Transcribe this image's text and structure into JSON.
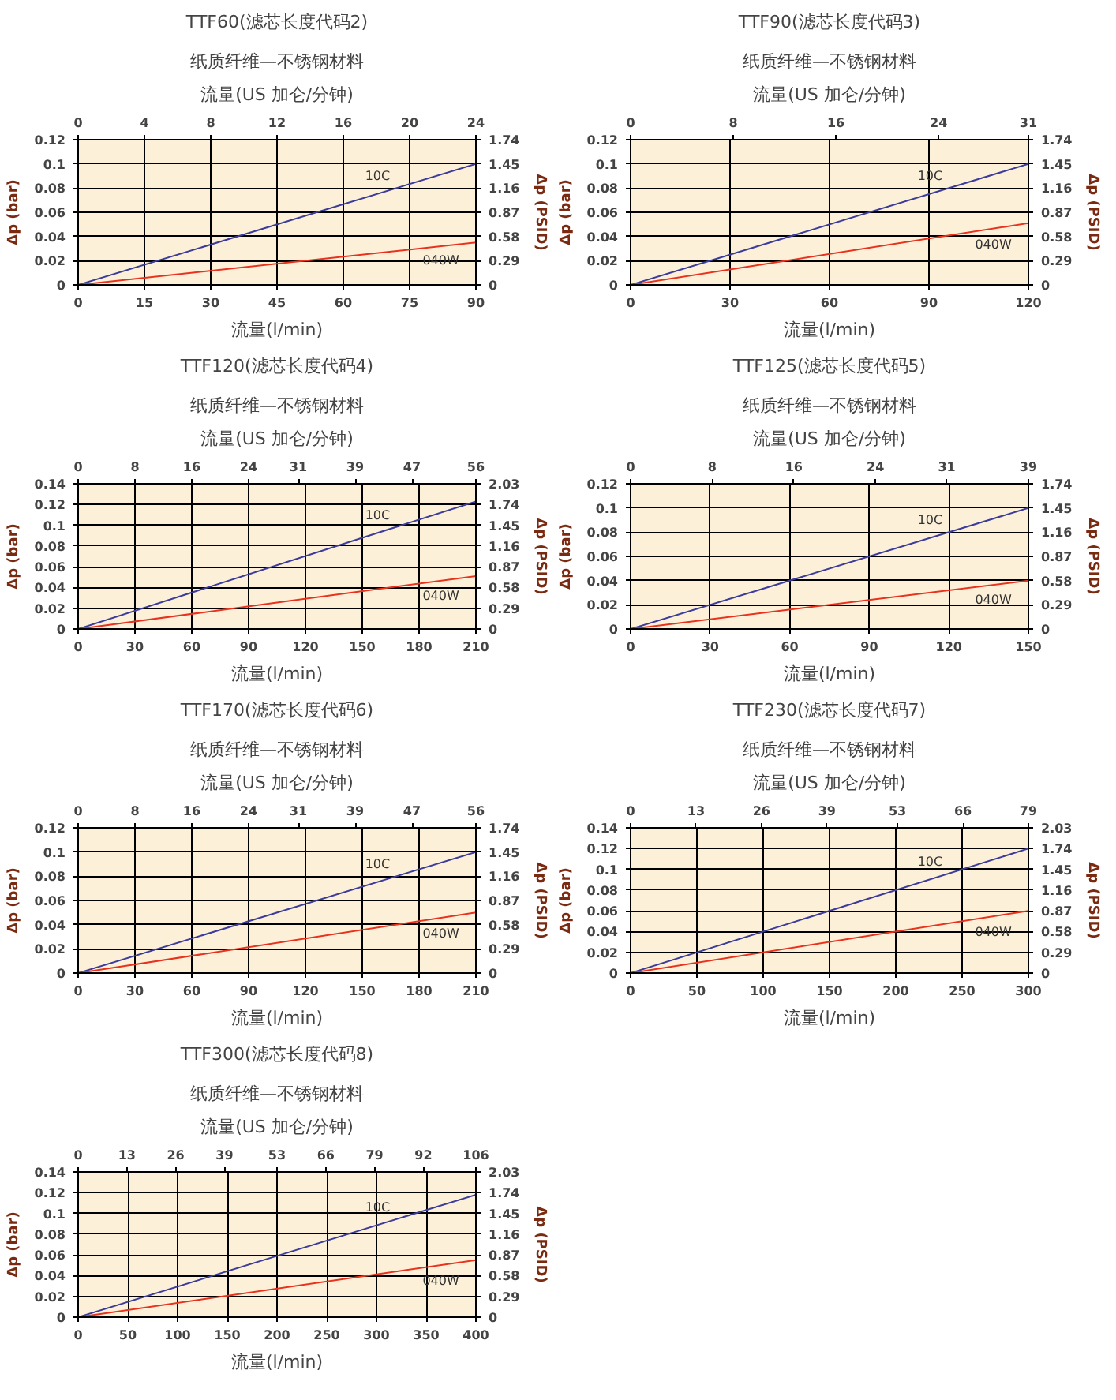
{
  "chart_data": [
    {
      "type": "line",
      "title": "TTF60(滤芯长度代码2)",
      "subtitle": "纸质纤维—不锈钢材料",
      "x2label": "流量(US 加仑/分钟)",
      "xlabel": "流量(l/min)",
      "ylabel": "Δp (bar)",
      "y2label": "Δp (PSID)",
      "xlim": [
        0,
        90
      ],
      "xticks": [
        0,
        15,
        30,
        45,
        60,
        75,
        90
      ],
      "x2lim": [
        0,
        24
      ],
      "x2ticks": [
        0,
        4,
        8,
        12,
        16,
        20,
        24
      ],
      "ylim": [
        0,
        0.12
      ],
      "yticks": [
        0,
        0.02,
        0.04,
        0.06,
        0.08,
        0.1,
        0.12
      ],
      "y2lim": [
        0,
        1.74
      ],
      "y2ticks": [
        0,
        0.29,
        0.58,
        0.87,
        1.16,
        1.45,
        1.74
      ],
      "grid": true,
      "series": [
        {
          "name": "10C",
          "color": "#3b3b9b",
          "x": [
            0,
            90
          ],
          "values": [
            0,
            0.1
          ]
        },
        {
          "name": "040W",
          "color": "#e8321e",
          "x": [
            0,
            90
          ],
          "values": [
            0,
            0.035
          ]
        }
      ]
    },
    {
      "type": "line",
      "title": "TTF90(滤芯长度代码3)",
      "subtitle": "纸质纤维—不锈钢材料",
      "x2label": "流量(US 加仑/分钟)",
      "xlabel": "流量(l/min)",
      "ylabel": "Δp (bar)",
      "y2label": "Δp (PSID)",
      "xlim": [
        0,
        120
      ],
      "xticks": [
        0,
        30,
        60,
        90,
        120
      ],
      "x2lim": [
        0,
        31
      ],
      "x2ticks": [
        0,
        8,
        16,
        24,
        31
      ],
      "ylim": [
        0,
        0.12
      ],
      "yticks": [
        0,
        0.02,
        0.04,
        0.06,
        0.08,
        0.1,
        0.12
      ],
      "y2lim": [
        0,
        1.74
      ],
      "y2ticks": [
        0,
        0.29,
        0.58,
        0.87,
        1.16,
        1.45,
        1.74
      ],
      "grid": true,
      "series": [
        {
          "name": "10C",
          "color": "#3b3b9b",
          "x": [
            0,
            120
          ],
          "values": [
            0,
            0.1
          ]
        },
        {
          "name": "040W",
          "color": "#e8321e",
          "x": [
            0,
            120
          ],
          "values": [
            0,
            0.051
          ]
        }
      ]
    },
    {
      "type": "line",
      "title": "TTF120(滤芯长度代码4)",
      "subtitle": "纸质纤维—不锈钢材料",
      "x2label": "流量(US 加仑/分钟)",
      "xlabel": "流量(l/min)",
      "ylabel": "Δp (bar)",
      "y2label": "Δp (PSID)",
      "xlim": [
        0,
        210
      ],
      "xticks": [
        0,
        30,
        60,
        90,
        120,
        150,
        180,
        210
      ],
      "x2lim": [
        0,
        56
      ],
      "x2ticks": [
        0,
        8,
        16,
        24,
        31,
        39,
        47,
        56
      ],
      "ylim": [
        0,
        0.14
      ],
      "yticks": [
        0,
        0.02,
        0.04,
        0.06,
        0.08,
        0.1,
        0.12,
        0.14
      ],
      "y2lim": [
        0,
        2.03
      ],
      "y2ticks": [
        0,
        0.29,
        0.58,
        0.87,
        1.16,
        1.45,
        1.74,
        2.03
      ],
      "grid": true,
      "series": [
        {
          "name": "10C",
          "color": "#3b3b9b",
          "x": [
            0,
            210
          ],
          "values": [
            0,
            0.123
          ]
        },
        {
          "name": "040W",
          "color": "#e8321e",
          "x": [
            0,
            210
          ],
          "values": [
            0,
            0.051
          ]
        }
      ]
    },
    {
      "type": "line",
      "title": "TTF125(滤芯长度代码5)",
      "subtitle": "纸质纤维—不锈钢材料",
      "x2label": "流量(US 加仑/分钟)",
      "xlabel": "流量(l/min)",
      "ylabel": "Δp (bar)",
      "y2label": "Δp (PSID)",
      "xlim": [
        0,
        150
      ],
      "xticks": [
        0,
        30,
        60,
        90,
        120,
        150
      ],
      "x2lim": [
        0,
        39
      ],
      "x2ticks": [
        0,
        8,
        16,
        24,
        31,
        39
      ],
      "ylim": [
        0,
        0.12
      ],
      "yticks": [
        0,
        0.02,
        0.04,
        0.06,
        0.08,
        0.1,
        0.12
      ],
      "y2lim": [
        0,
        1.74
      ],
      "y2ticks": [
        0,
        0.29,
        0.58,
        0.87,
        1.16,
        1.45,
        1.74
      ],
      "grid": true,
      "series": [
        {
          "name": "10C",
          "color": "#3b3b9b",
          "x": [
            0,
            150
          ],
          "values": [
            0,
            0.1
          ]
        },
        {
          "name": "040W",
          "color": "#e8321e",
          "x": [
            0,
            150
          ],
          "values": [
            0,
            0.04
          ]
        }
      ]
    },
    {
      "type": "line",
      "title": "TTF170(滤芯长度代码6)",
      "subtitle": "纸质纤维—不锈钢材料",
      "x2label": "流量(US 加仑/分钟)",
      "xlabel": "流量(l/min)",
      "ylabel": "Δp (bar)",
      "y2label": "Δp (PSID)",
      "xlim": [
        0,
        210
      ],
      "xticks": [
        0,
        30,
        60,
        90,
        120,
        150,
        180,
        210
      ],
      "x2lim": [
        0,
        56
      ],
      "x2ticks": [
        0,
        8,
        16,
        24,
        31,
        39,
        47,
        56
      ],
      "ylim": [
        0,
        0.12
      ],
      "yticks": [
        0,
        0.02,
        0.04,
        0.06,
        0.08,
        0.1,
        0.12
      ],
      "y2lim": [
        0,
        1.74
      ],
      "y2ticks": [
        0,
        0.29,
        0.58,
        0.87,
        1.16,
        1.45,
        1.74
      ],
      "grid": true,
      "series": [
        {
          "name": "10C",
          "color": "#3b3b9b",
          "x": [
            0,
            210
          ],
          "values": [
            0,
            0.1
          ]
        },
        {
          "name": "040W",
          "color": "#e8321e",
          "x": [
            0,
            210
          ],
          "values": [
            0,
            0.05
          ]
        }
      ]
    },
    {
      "type": "line",
      "title": "TTF230(滤芯长度代码7)",
      "subtitle": "纸质纤维—不锈钢材料",
      "x2label": "流量(US 加仑/分钟)",
      "xlabel": "流量(l/min)",
      "ylabel": "Δp (bar)",
      "y2label": "Δp (PSID)",
      "xlim": [
        0,
        300
      ],
      "xticks": [
        0,
        50,
        100,
        150,
        200,
        250,
        300
      ],
      "x2lim": [
        0,
        79
      ],
      "x2ticks": [
        0,
        13,
        26,
        39,
        53,
        66,
        79
      ],
      "ylim": [
        0,
        0.14
      ],
      "yticks": [
        0,
        0.02,
        0.04,
        0.06,
        0.08,
        0.1,
        0.12,
        0.14
      ],
      "y2lim": [
        0,
        2.03
      ],
      "y2ticks": [
        0,
        0.29,
        0.58,
        0.87,
        1.16,
        1.45,
        1.74,
        2.03
      ],
      "grid": true,
      "series": [
        {
          "name": "10C",
          "color": "#3b3b9b",
          "x": [
            0,
            300
          ],
          "values": [
            0,
            0.12
          ]
        },
        {
          "name": "040W",
          "color": "#e8321e",
          "x": [
            0,
            300
          ],
          "values": [
            0,
            0.06
          ]
        }
      ]
    },
    {
      "type": "line",
      "title": "TTF300(滤芯长度代码8)",
      "subtitle": "纸质纤维—不锈钢材料",
      "x2label": "流量(US 加仑/分钟)",
      "xlabel": "流量(l/min)",
      "ylabel": "Δp (bar)",
      "y2label": "Δp (PSID)",
      "xlim": [
        0,
        400
      ],
      "xticks": [
        0,
        50,
        100,
        150,
        200,
        250,
        300,
        350,
        400
      ],
      "x2lim": [
        0,
        106
      ],
      "x2ticks": [
        0,
        13,
        26,
        39,
        53,
        66,
        79,
        92,
        106
      ],
      "ylim": [
        0,
        0.14
      ],
      "yticks": [
        0,
        0.02,
        0.04,
        0.06,
        0.08,
        0.1,
        0.12,
        0.14
      ],
      "y2lim": [
        0,
        2.03
      ],
      "y2ticks": [
        0,
        0.29,
        0.58,
        0.87,
        1.16,
        1.45,
        1.74,
        2.03
      ],
      "grid": true,
      "series": [
        {
          "name": "10C",
          "color": "#3b3b9b",
          "x": [
            0,
            400
          ],
          "values": [
            0,
            0.118
          ]
        },
        {
          "name": "040W",
          "color": "#e8321e",
          "x": [
            0,
            400
          ],
          "values": [
            0,
            0.055
          ]
        }
      ]
    }
  ]
}
